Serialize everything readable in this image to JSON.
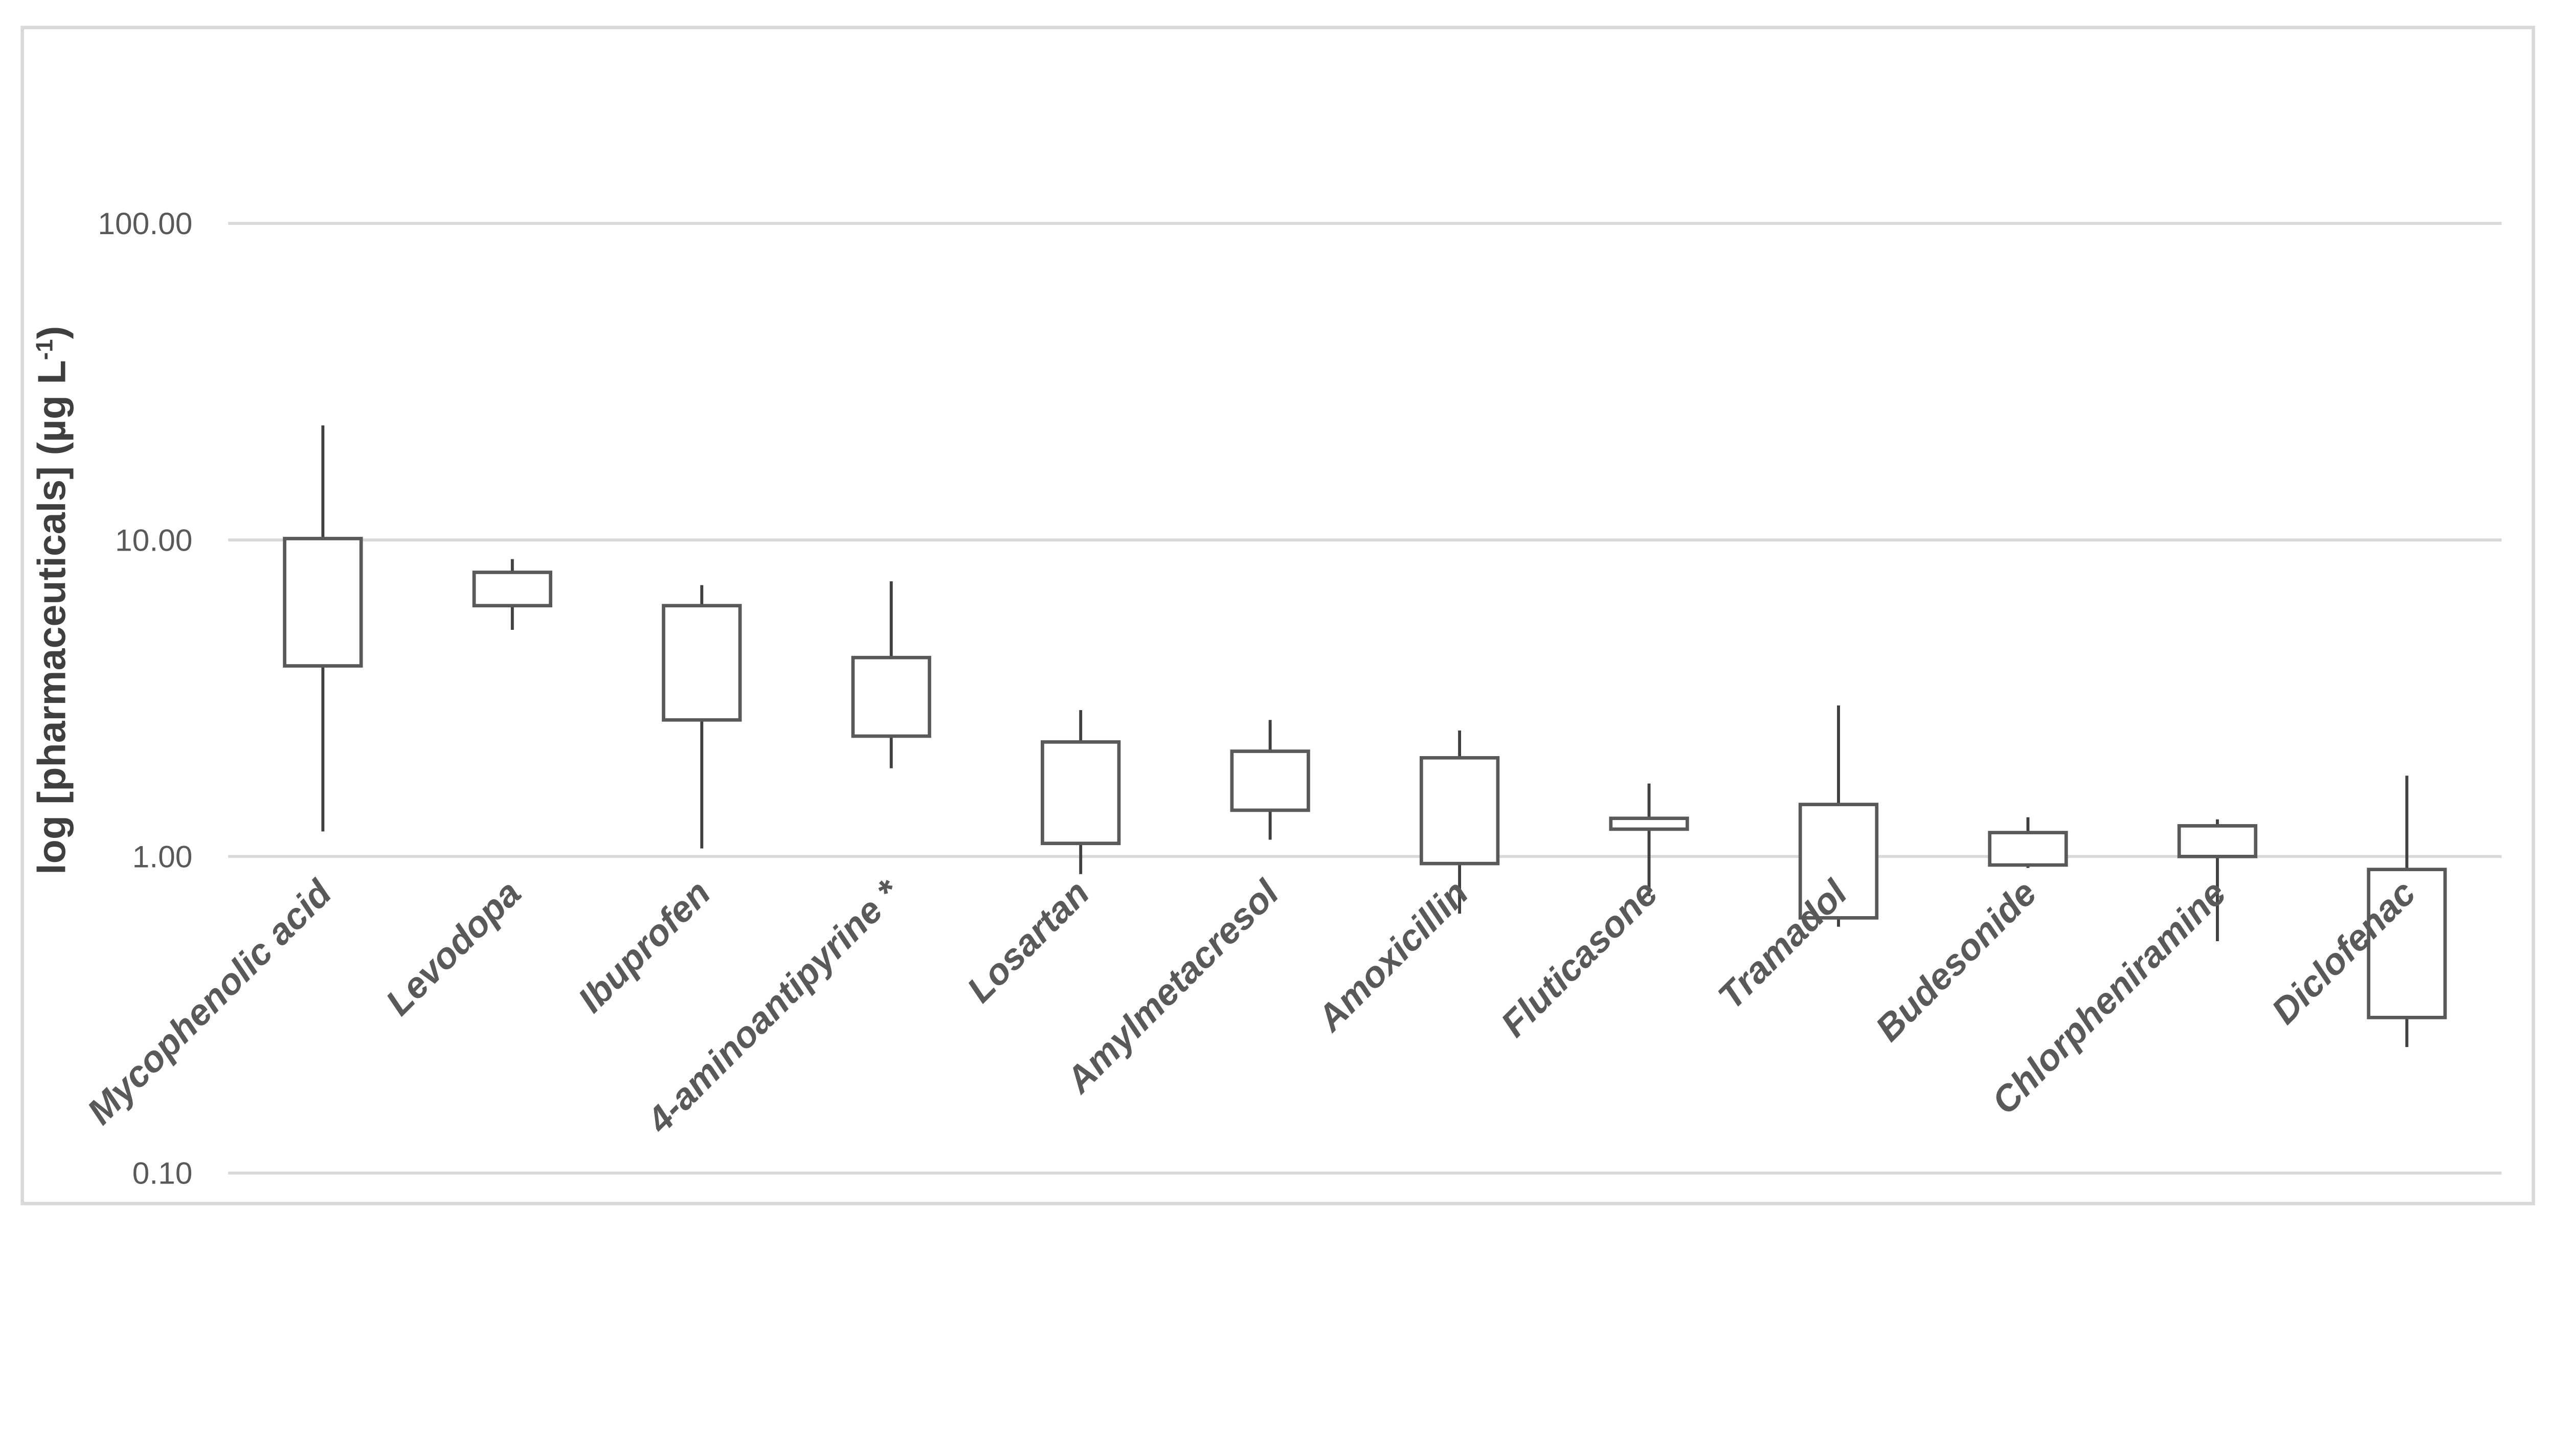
{
  "chart_data": {
    "type": "boxplot",
    "subtype": "open-high-low-close candlestick, no median line, white box fill",
    "title": "",
    "xlabel": "",
    "ylabel": "log [pharmaceuticals] (µg L-1)",
    "ylabel_parts": {
      "main": "log [pharmaceuticals] (µg L",
      "superscript": "-1",
      "suffix": ")"
    },
    "axis_scale": "log10",
    "ylim": [
      0.1,
      100.0
    ],
    "grid": true,
    "legend": false,
    "yticks": [
      {
        "label": "100.00",
        "value": 100
      },
      {
        "label": "10.00",
        "value": 10
      },
      {
        "label": "1.00",
        "value": 1
      },
      {
        "label": "0.10",
        "value": 0.1
      }
    ],
    "categories": [
      "Mycophenolic acid",
      "Levodopa",
      "Ibuprofen",
      "4-aminoantipyrine *",
      "Losartan",
      "Amylmetacresol",
      "Amoxicillin",
      "Fluticasone",
      "Tramadol",
      "Budesonide",
      "Chlorpheniramine",
      "Diclofenac"
    ],
    "boxes": [
      {
        "label": "Mycophenolic acid",
        "high": 23.0,
        "box_top": 10.1,
        "box_bottom": 4.0,
        "low": 1.2
      },
      {
        "label": "Levodopa",
        "high": 8.7,
        "box_top": 7.9,
        "box_bottom": 6.2,
        "low": 5.2
      },
      {
        "label": "Ibuprofen",
        "high": 7.2,
        "box_top": 6.2,
        "box_bottom": 2.7,
        "low": 1.06
      },
      {
        "label": "4-aminoantipyrine *",
        "high": 7.4,
        "box_top": 4.25,
        "box_bottom": 2.4,
        "low": 1.9
      },
      {
        "label": "Losartan",
        "high": 2.9,
        "box_top": 2.3,
        "box_bottom": 1.1,
        "low": 0.88
      },
      {
        "label": "Amylmetacresol",
        "high": 2.7,
        "box_top": 2.15,
        "box_bottom": 1.4,
        "low": 1.13
      },
      {
        "label": "Amoxicillin",
        "high": 2.5,
        "box_top": 2.05,
        "box_bottom": 0.95,
        "low": 0.66
      },
      {
        "label": "Fluticasone",
        "high": 1.7,
        "box_top": 1.32,
        "box_bottom": 1.22,
        "low": 0.75
      },
      {
        "label": "Tramadol",
        "high": 3.0,
        "box_top": 1.46,
        "box_bottom": 0.64,
        "low": 0.6
      },
      {
        "label": "Budesonide",
        "high": 1.33,
        "box_top": 1.19,
        "box_bottom": 0.94,
        "low": 0.92
      },
      {
        "label": "Chlorpheniramine",
        "high": 1.31,
        "box_top": 1.25,
        "box_bottom": 1.0,
        "low": 0.54
      },
      {
        "label": "Diclofenac",
        "high": 1.8,
        "box_top": 0.91,
        "box_bottom": 0.31,
        "low": 0.25
      }
    ]
  },
  "colors": {
    "background": "#ffffff",
    "chart_border": "#d9d9d9",
    "gridline": "#d9d9d9",
    "box_stroke": "#595959",
    "box_fill": "#ffffff",
    "whisker_stroke": "#404040",
    "tick_label": "#595959",
    "category_label": "#595959",
    "axis_title": "#3f3f3f"
  }
}
